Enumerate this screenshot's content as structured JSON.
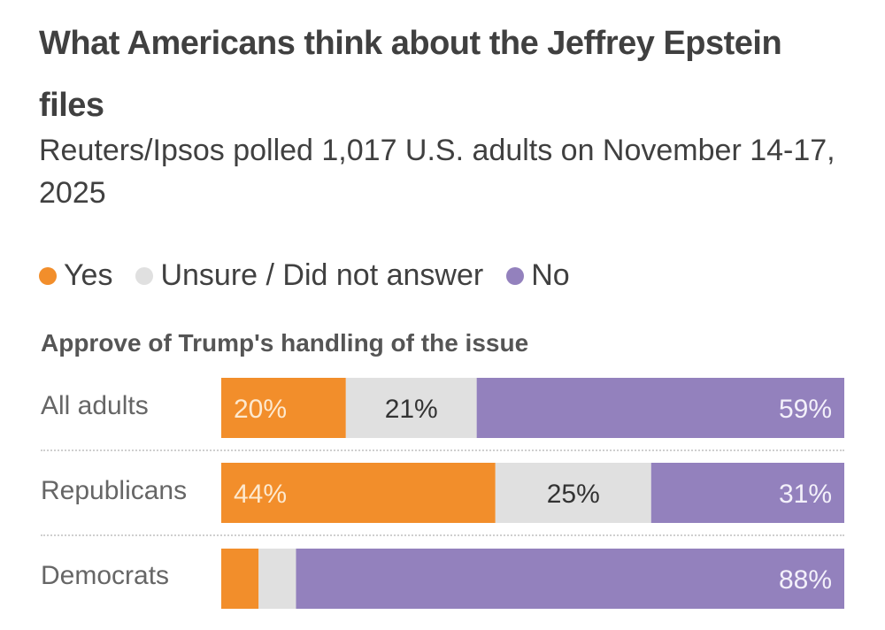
{
  "header": {
    "title": "What Americans think about the Jeffrey Epstein files",
    "subtitle": "Reuters/Ipsos polled 1,017 U.S. adults on November 14-17, 2025"
  },
  "legend": [
    {
      "label": "Yes",
      "color": "#f28e2b"
    },
    {
      "label": "Unsure / Did not answer",
      "color": "#e0e0e0"
    },
    {
      "label": "No",
      "color": "#9381bd"
    }
  ],
  "chart_data": {
    "type": "bar",
    "orientation": "horizontal",
    "stacked": true,
    "title": "What Americans think about the Jeffrey Epstein files",
    "subtitle": "Reuters/Ipsos polled 1,017 U.S. adults on November 14-17, 2025",
    "section_title": "Approve of Trump's handling of the issue",
    "categories": [
      "All adults",
      "Republicans",
      "Democrats"
    ],
    "series": [
      {
        "name": "Yes",
        "color": "#f28e2b",
        "label_color": "#fde9cf",
        "values": [
          20,
          44,
          6
        ],
        "labels": [
          "20%",
          "44%",
          ""
        ]
      },
      {
        "name": "Unsure / Did not answer",
        "color": "#e0e0e0",
        "label_color": "#333333",
        "values": [
          21,
          25,
          6
        ],
        "labels": [
          "21%",
          "25%",
          ""
        ]
      },
      {
        "name": "No",
        "color": "#9381bd",
        "label_color": "#f3f0fa",
        "values": [
          59,
          31,
          88
        ],
        "labels": [
          "59%",
          "31%",
          "88%"
        ]
      }
    ],
    "xlim": [
      0,
      100
    ],
    "legend_position": "top-left",
    "grid": false
  }
}
